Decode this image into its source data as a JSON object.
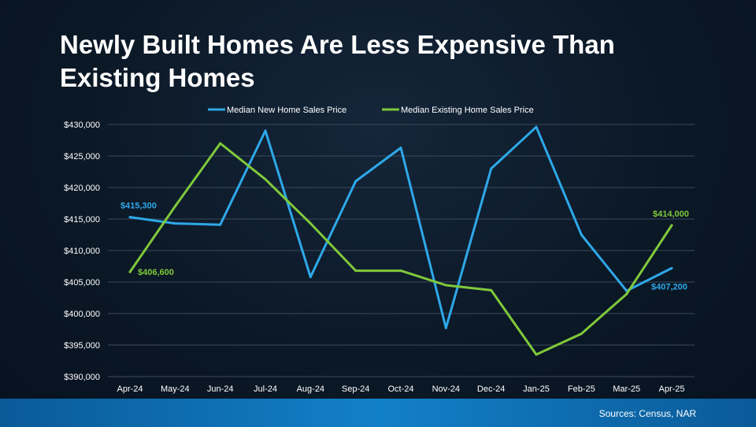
{
  "colors": {
    "new": "#2ea8e8",
    "existing": "#7fc93a",
    "grid": "#3a4a5c"
  },
  "footer": {
    "source": "Sources: Census, NAR"
  },
  "chart_data": {
    "type": "line",
    "title": "Newly Built Homes Are Less Expensive Than Existing Homes",
    "categories": [
      "Apr-24",
      "May-24",
      "Jun-24",
      "Jul-24",
      "Aug-24",
      "Sep-24",
      "Oct-24",
      "Nov-24",
      "Dec-24",
      "Jan-25",
      "Feb-25",
      "Mar-25",
      "Apr-25"
    ],
    "ylim": [
      390000,
      430000
    ],
    "yticks": [
      {
        "value": 430000,
        "label": "$430,000"
      },
      {
        "value": 425000,
        "label": "$425,000"
      },
      {
        "value": 420000,
        "label": "$420,000"
      },
      {
        "value": 415000,
        "label": "$415,000"
      },
      {
        "value": 410000,
        "label": "$410,000"
      },
      {
        "value": 405000,
        "label": "$405,000"
      },
      {
        "value": 400000,
        "label": "$400,000"
      },
      {
        "value": 395000,
        "label": "$395,000"
      },
      {
        "value": 390000,
        "label": "$390,000"
      }
    ],
    "legend_position": "top-center",
    "series": [
      {
        "key": "new",
        "name": "Median New Home Sales Price",
        "values": [
          415300,
          414300,
          414100,
          429000,
          405800,
          421000,
          426300,
          397700,
          423000,
          429600,
          412500,
          403600,
          407200
        ],
        "labels": [
          {
            "index": 0,
            "text": "$415,300",
            "position": "above"
          },
          {
            "index": 12,
            "text": "$407,200",
            "position": "below-left"
          }
        ]
      },
      {
        "key": "existing",
        "name": "Median Existing Home Sales Price",
        "values": [
          406600,
          417000,
          427000,
          421300,
          414300,
          406800,
          406800,
          404500,
          403700,
          393500,
          396800,
          403100,
          414000
        ],
        "labels": [
          {
            "index": 0,
            "text": "$406,600",
            "position": "right"
          },
          {
            "index": 12,
            "text": "$414,000",
            "position": "above-left"
          }
        ]
      }
    ]
  }
}
